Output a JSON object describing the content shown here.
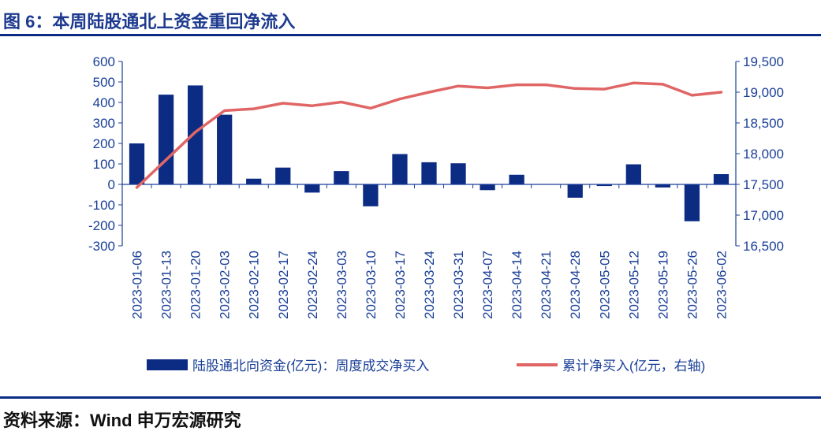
{
  "figure": {
    "title": "图 6：本周陆股通北上资金重回净流入",
    "source": "资料来源：Wind  申万宏源研究"
  },
  "colors": {
    "bar": "#0c2c84",
    "line": "#e06666",
    "axis": "#1a3f97",
    "title": "#1d3a8f"
  },
  "chart_data": {
    "type": "bar",
    "title": "",
    "categories": [
      "2023-01-06",
      "2023-01-13",
      "2023-01-20",
      "2023-02-03",
      "2023-02-10",
      "2023-02-17",
      "2023-02-24",
      "2023-03-03",
      "2023-03-10",
      "2023-03-17",
      "2023-03-24",
      "2023-03-31",
      "2023-04-07",
      "2023-04-14",
      "2023-04-21",
      "2023-04-28",
      "2023-05-05",
      "2023-05-12",
      "2023-05-19",
      "2023-05-26",
      "2023-06-02"
    ],
    "series": [
      {
        "name": "陆股通北向资金(亿元)：周度成交净买入",
        "type": "bar",
        "axis": "left",
        "values": [
          200,
          438,
          483,
          340,
          28,
          82,
          -40,
          65,
          -107,
          148,
          108,
          103,
          -28,
          47,
          2,
          -65,
          -8,
          98,
          -15,
          -180,
          50
        ]
      },
      {
        "name": "累计净买入(亿元，右轴)",
        "type": "line",
        "axis": "right",
        "values": [
          17450,
          17900,
          18350,
          18700,
          18730,
          18820,
          18780,
          18840,
          18740,
          18890,
          19000,
          19100,
          19070,
          19120,
          19120,
          19060,
          19050,
          19150,
          19130,
          18950,
          19000
        ]
      }
    ],
    "y_left": {
      "min": -300,
      "max": 600,
      "step": 100,
      "ticks": [
        "-300",
        "-200",
        "-100",
        "0",
        "100",
        "200",
        "300",
        "400",
        "500",
        "600"
      ]
    },
    "y_right": {
      "min": 16500,
      "max": 19500,
      "step": 500,
      "ticks": [
        "16,500",
        "17,000",
        "17,500",
        "18,000",
        "18,500",
        "19,000",
        "19,500"
      ]
    },
    "grid": false,
    "legend": "bottom"
  }
}
